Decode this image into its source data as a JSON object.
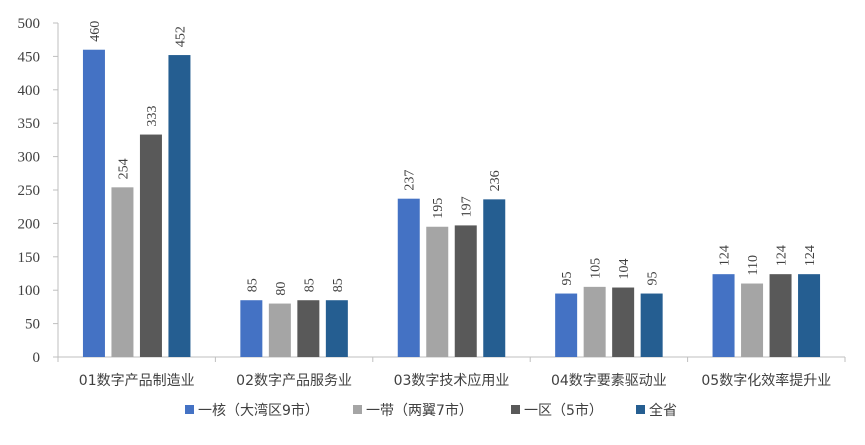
{
  "chart_data": {
    "type": "bar",
    "categories": [
      "01数字产品制造业",
      "02数字产品服务业",
      "03数字技术应用业",
      "04数字要素驱动业",
      "05数字化效率提升业"
    ],
    "series": [
      {
        "name": "一核（大湾区9市）",
        "color": "#4472C4",
        "values": [
          460,
          85,
          237,
          95,
          124
        ]
      },
      {
        "name": "一带（两翼7市）",
        "color": "#A5A5A5",
        "values": [
          254,
          80,
          195,
          105,
          110
        ]
      },
      {
        "name": "一区（5市）",
        "color": "#595959",
        "values": [
          333,
          85,
          197,
          104,
          124
        ]
      },
      {
        "name": "全省",
        "color": "#255E91",
        "values": [
          452,
          85,
          236,
          95,
          124
        ]
      }
    ],
    "yticks": [
      0,
      50,
      100,
      150,
      200,
      250,
      300,
      350,
      400,
      450,
      500
    ],
    "ylim": [
      0,
      500
    ],
    "grid": false,
    "legend_position": "bottom"
  }
}
